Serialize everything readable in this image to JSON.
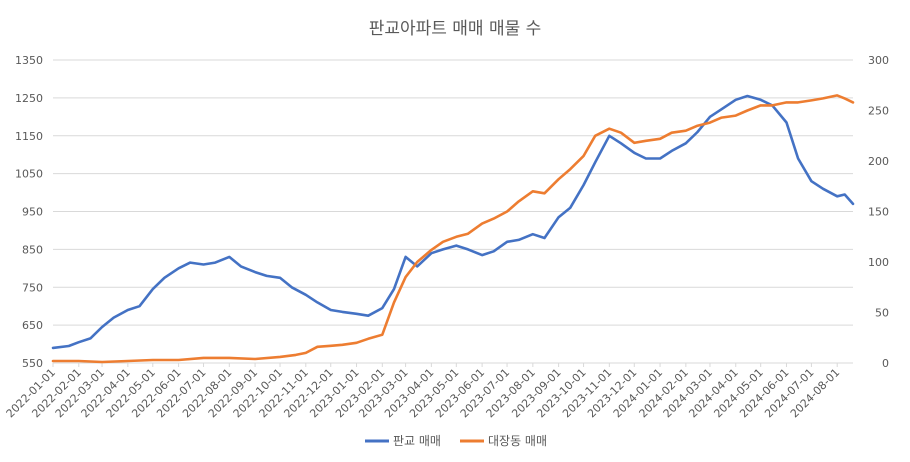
{
  "chart_data": {
    "type": "line",
    "title": "판교아파트 매매 매물 수",
    "x_start": "2022-01-01",
    "x_end": "2024-08-20",
    "x_tick_labels": [
      "2022-01-01",
      "2022-02-01",
      "2022-03-01",
      "2022-04-01",
      "2022-05-01",
      "2022-06-01",
      "2022-07-01",
      "2022-08-01",
      "2022-09-01",
      "2022-10-01",
      "2022-11-01",
      "2022-12-01",
      "2023-01-01",
      "2023-02-01",
      "2023-03-01",
      "2023-04-01",
      "2023-05-01",
      "2023-06-01",
      "2023-07-01",
      "2023-08-01",
      "2023-09-01",
      "2023-10-01",
      "2023-11-01",
      "2023-12-01",
      "2024-01-01",
      "2024-02-01",
      "2024-03-01",
      "2024-04-01",
      "2024-05-01",
      "2024-06-01",
      "2024-07-01",
      "2024-08-01"
    ],
    "y_left": {
      "ylim": [
        550,
        1350
      ],
      "ticks": [
        550,
        650,
        750,
        850,
        950,
        1050,
        1150,
        1250,
        1350
      ]
    },
    "y_right": {
      "ylim": [
        0,
        300
      ],
      "ticks": [
        0,
        50,
        100,
        150,
        200,
        250,
        300
      ]
    },
    "grid": true,
    "legend_position": "bottom",
    "series": [
      {
        "name": "판교 매매",
        "axis": "left",
        "color": "#4472C4",
        "points": [
          [
            "2022-01-01",
            590
          ],
          [
            "2022-01-20",
            595
          ],
          [
            "2022-02-01",
            605
          ],
          [
            "2022-02-15",
            615
          ],
          [
            "2022-03-01",
            645
          ],
          [
            "2022-03-15",
            670
          ],
          [
            "2022-04-01",
            690
          ],
          [
            "2022-04-15",
            700
          ],
          [
            "2022-05-01",
            745
          ],
          [
            "2022-05-15",
            775
          ],
          [
            "2022-06-01",
            800
          ],
          [
            "2022-06-15",
            815
          ],
          [
            "2022-07-01",
            810
          ],
          [
            "2022-07-15",
            815
          ],
          [
            "2022-08-01",
            830
          ],
          [
            "2022-08-15",
            805
          ],
          [
            "2022-09-01",
            790
          ],
          [
            "2022-09-15",
            780
          ],
          [
            "2022-10-01",
            775
          ],
          [
            "2022-10-15",
            750
          ],
          [
            "2022-11-01",
            730
          ],
          [
            "2022-11-15",
            710
          ],
          [
            "2022-12-01",
            690
          ],
          [
            "2022-12-15",
            685
          ],
          [
            "2023-01-01",
            680
          ],
          [
            "2023-01-15",
            675
          ],
          [
            "2023-02-01",
            695
          ],
          [
            "2023-02-15",
            745
          ],
          [
            "2023-03-01",
            830
          ],
          [
            "2023-03-15",
            805
          ],
          [
            "2023-04-01",
            840
          ],
          [
            "2023-04-15",
            850
          ],
          [
            "2023-05-01",
            860
          ],
          [
            "2023-05-15",
            850
          ],
          [
            "2023-06-01",
            835
          ],
          [
            "2023-06-15",
            845
          ],
          [
            "2023-07-01",
            870
          ],
          [
            "2023-07-15",
            875
          ],
          [
            "2023-08-01",
            890
          ],
          [
            "2023-08-15",
            880
          ],
          [
            "2023-09-01",
            935
          ],
          [
            "2023-09-15",
            960
          ],
          [
            "2023-10-01",
            1020
          ],
          [
            "2023-10-15",
            1080
          ],
          [
            "2023-11-01",
            1150
          ],
          [
            "2023-11-15",
            1130
          ],
          [
            "2023-12-01",
            1105
          ],
          [
            "2023-12-15",
            1090
          ],
          [
            "2024-01-01",
            1090
          ],
          [
            "2024-01-15",
            1110
          ],
          [
            "2024-02-01",
            1130
          ],
          [
            "2024-02-15",
            1160
          ],
          [
            "2024-03-01",
            1200
          ],
          [
            "2024-03-15",
            1220
          ],
          [
            "2024-04-01",
            1245
          ],
          [
            "2024-04-15",
            1255
          ],
          [
            "2024-05-01",
            1245
          ],
          [
            "2024-05-15",
            1230
          ],
          [
            "2024-06-01",
            1185
          ],
          [
            "2024-06-15",
            1090
          ],
          [
            "2024-07-01",
            1030
          ],
          [
            "2024-07-15",
            1010
          ],
          [
            "2024-08-01",
            990
          ],
          [
            "2024-08-10",
            995
          ],
          [
            "2024-08-20",
            970
          ]
        ]
      },
      {
        "name": "대장동 매매",
        "axis": "right",
        "color": "#ED7D31",
        "points": [
          [
            "2022-01-01",
            2
          ],
          [
            "2022-02-01",
            2
          ],
          [
            "2022-03-01",
            1
          ],
          [
            "2022-04-01",
            2
          ],
          [
            "2022-05-01",
            3
          ],
          [
            "2022-06-01",
            3
          ],
          [
            "2022-07-01",
            5
          ],
          [
            "2022-08-01",
            5
          ],
          [
            "2022-09-01",
            4
          ],
          [
            "2022-10-01",
            6
          ],
          [
            "2022-10-20",
            8
          ],
          [
            "2022-11-01",
            10
          ],
          [
            "2022-11-15",
            16
          ],
          [
            "2022-12-01",
            17
          ],
          [
            "2022-12-15",
            18
          ],
          [
            "2023-01-01",
            20
          ],
          [
            "2023-01-15",
            24
          ],
          [
            "2023-02-01",
            28
          ],
          [
            "2023-02-15",
            60
          ],
          [
            "2023-03-01",
            85
          ],
          [
            "2023-03-15",
            100
          ],
          [
            "2023-04-01",
            112
          ],
          [
            "2023-04-15",
            120
          ],
          [
            "2023-05-01",
            125
          ],
          [
            "2023-05-15",
            128
          ],
          [
            "2023-06-01",
            138
          ],
          [
            "2023-06-15",
            143
          ],
          [
            "2023-07-01",
            150
          ],
          [
            "2023-07-15",
            160
          ],
          [
            "2023-08-01",
            170
          ],
          [
            "2023-08-15",
            168
          ],
          [
            "2023-09-01",
            182
          ],
          [
            "2023-09-15",
            192
          ],
          [
            "2023-10-01",
            205
          ],
          [
            "2023-10-15",
            225
          ],
          [
            "2023-11-01",
            232
          ],
          [
            "2023-11-15",
            228
          ],
          [
            "2023-12-01",
            218
          ],
          [
            "2023-12-15",
            220
          ],
          [
            "2024-01-01",
            222
          ],
          [
            "2024-01-15",
            228
          ],
          [
            "2024-02-01",
            230
          ],
          [
            "2024-02-15",
            235
          ],
          [
            "2024-03-01",
            238
          ],
          [
            "2024-03-15",
            243
          ],
          [
            "2024-04-01",
            245
          ],
          [
            "2024-04-15",
            250
          ],
          [
            "2024-05-01",
            255
          ],
          [
            "2024-05-15",
            255
          ],
          [
            "2024-06-01",
            258
          ],
          [
            "2024-06-15",
            258
          ],
          [
            "2024-07-01",
            260
          ],
          [
            "2024-07-15",
            262
          ],
          [
            "2024-08-01",
            265
          ],
          [
            "2024-08-10",
            262
          ],
          [
            "2024-08-20",
            258
          ]
        ]
      }
    ]
  }
}
